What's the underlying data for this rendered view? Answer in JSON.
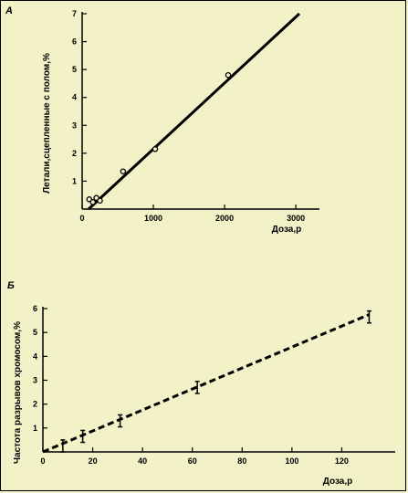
{
  "chart_data": [
    {
      "type": "scatter",
      "panel_label": "А",
      "xlabel": "Доза,р",
      "ylabel": "Летали,сцепленные с полом,%",
      "xlim": [
        0,
        3200
      ],
      "ylim": [
        0,
        7
      ],
      "x_ticks": [
        0,
        1000,
        2000,
        3000
      ],
      "y_ticks": [
        1,
        2,
        3,
        4,
        5,
        6,
        7
      ],
      "points": [
        {
          "x": 100,
          "y": 0.35
        },
        {
          "x": 150,
          "y": 0.25
        },
        {
          "x": 200,
          "y": 0.4
        },
        {
          "x": 250,
          "y": 0.3
        },
        {
          "x": 575,
          "y": 1.35
        },
        {
          "x": 1025,
          "y": 2.15
        },
        {
          "x": 2050,
          "y": 4.8
        }
      ],
      "fit_line": [
        {
          "x": 90,
          "y": 0
        },
        {
          "x": 3050,
          "y": 7
        }
      ],
      "fit_style": "solid"
    },
    {
      "type": "scatter",
      "panel_label": "Б",
      "xlabel": "Доза,р",
      "ylabel": "Частота разрывов хромосом,%",
      "xlim": [
        0,
        140
      ],
      "ylim": [
        0,
        6
      ],
      "x_ticks": [
        0,
        20,
        40,
        60,
        80,
        100,
        120
      ],
      "y_ticks": [
        1,
        2,
        3,
        4,
        5,
        6
      ],
      "points": [
        {
          "x": 8,
          "y": 0.25,
          "err": 0.25
        },
        {
          "x": 16,
          "y": 0.65,
          "err": 0.25
        },
        {
          "x": 31,
          "y": 1.3,
          "err": 0.25
        },
        {
          "x": 62,
          "y": 2.7,
          "err": 0.25
        },
        {
          "x": 131,
          "y": 5.65,
          "err": 0.25
        }
      ],
      "fit_line": [
        {
          "x": 0,
          "y": 0
        },
        {
          "x": 131,
          "y": 5.75
        }
      ],
      "fit_style": "dashed"
    }
  ]
}
